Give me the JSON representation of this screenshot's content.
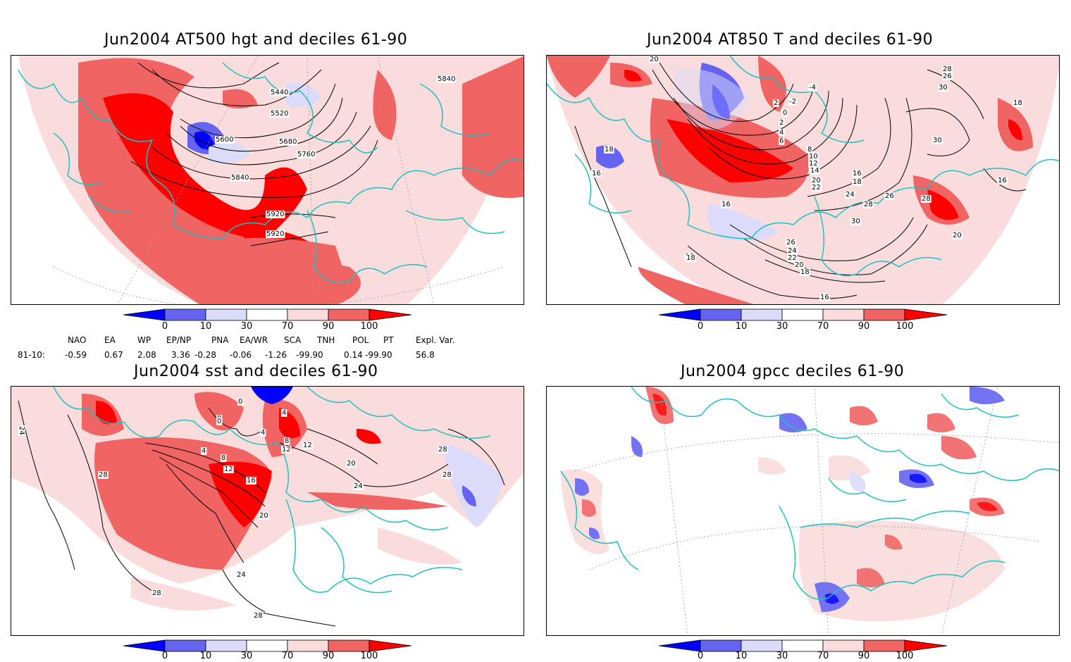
{
  "panels": [
    {
      "id": "hgt",
      "title": "Jun2004 AT500 hgt and deciles 61-90",
      "contour_labels": [
        "5440",
        "5520",
        "5600",
        "5680",
        "5760",
        "5840",
        "5840",
        "5920",
        "5920"
      ]
    },
    {
      "id": "t850",
      "title": "Jun2004 AT850 T and deciles 61-90",
      "contour_labels": [
        "-4",
        "-2",
        "0",
        "2",
        "4",
        "6",
        "8",
        "10",
        "12",
        "14",
        "16",
        "18",
        "20",
        "22",
        "24",
        "26",
        "28",
        "30",
        "16",
        "16",
        "16",
        "18",
        "18",
        "20",
        "28",
        "30",
        "22",
        "24",
        "26",
        "18",
        "16",
        "20",
        "16",
        "26",
        "28",
        "30",
        "18",
        "2",
        "20"
      ]
    },
    {
      "id": "sst",
      "title": "Jun2004 sst and deciles 61-90",
      "contour_labels": [
        "0",
        "0",
        "4",
        "8",
        "12",
        "16",
        "20",
        "24",
        "28",
        "28",
        "28",
        "24",
        "24",
        "20",
        "12",
        "12",
        "28",
        "28",
        "4",
        "0",
        "4",
        "8"
      ]
    },
    {
      "id": "gpcc",
      "title": "Jun2004 gpcc deciles 61-90",
      "contour_labels": []
    }
  ],
  "colorbar": {
    "ticks": [
      "0",
      "10",
      "30",
      "70",
      "90",
      "100"
    ],
    "colors": {
      "dark_blue": "#0000ff",
      "mid_blue": "#6464f0",
      "light_blue": "#dcdcfa",
      "white": "#ffffff",
      "light_red": "#fadcdc",
      "mid_red": "#f06464",
      "dark_red": "#ff0000"
    }
  },
  "indices": {
    "headers": [
      "NAO",
      "EA",
      "WP",
      "EP/NP",
      "PNA",
      "EA/WR",
      "SCA",
      "TNH",
      "POL",
      "PT",
      "Expl. Var."
    ],
    "row_label": "81-10:",
    "values": [
      "-0.59",
      "0.67",
      "2.08",
      "3.36",
      "-0.28",
      "-0.06",
      "-1.26",
      "-99.90",
      "0.14",
      "-99.90",
      "56.8"
    ]
  },
  "map_colors": {
    "coast": "#20c0c0",
    "contour": "#000000",
    "grid": "#888888"
  }
}
